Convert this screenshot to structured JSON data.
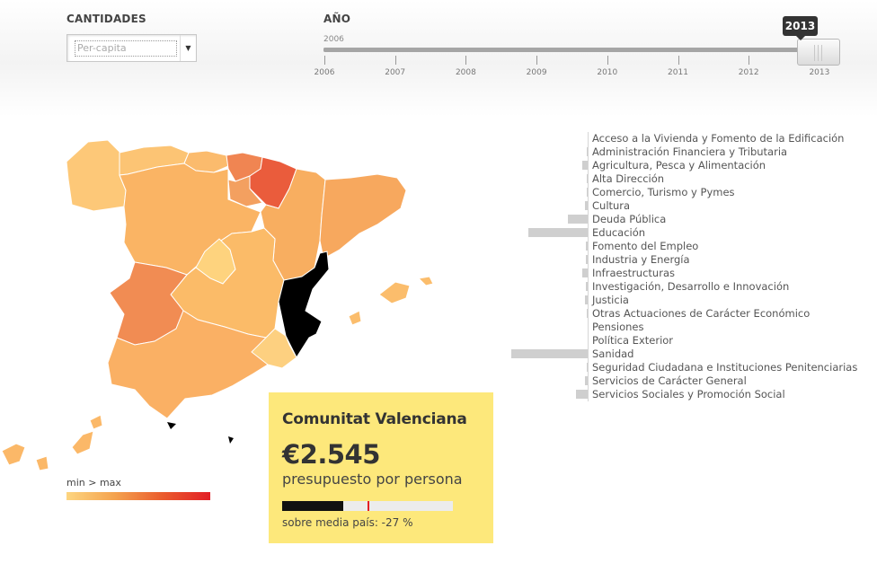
{
  "controls": {
    "cantidades_label": "CANTIDADES",
    "cantidades_value": "Per-capita",
    "anio_label": "AÑO",
    "slider_start_label": "2006",
    "selected_year": "2013",
    "year_ticks": [
      "2006",
      "2007",
      "2008",
      "2009",
      "2010",
      "2011",
      "2012",
      "2013"
    ]
  },
  "legend": {
    "label": "min > max",
    "colors": [
      "#fdd580",
      "#f4a34f",
      "#ea5c2d",
      "#e21f26"
    ]
  },
  "info": {
    "region": "Comunitat Valenciana",
    "amount": "€2.545",
    "unit": "presupuesto por persona",
    "comparison_text": "sobre media país: -27 %",
    "bar_fraction": 0.36,
    "mean_marker_fraction": 0.5
  },
  "categories": [
    {
      "label": "Acceso a la Vivienda y Fomento de la Edificación",
      "value": 0
    },
    {
      "label": "Administración Financiera y Tributaria",
      "value": 0.01
    },
    {
      "label": "Agricultura, Pesca y Alimentación",
      "value": 0.07
    },
    {
      "label": "Alta Dirección",
      "value": 0.01
    },
    {
      "label": "Comercio, Turismo y Pymes",
      "value": 0.01
    },
    {
      "label": "Cultura",
      "value": 0.04
    },
    {
      "label": "Deuda Pública",
      "value": 0.26
    },
    {
      "label": "Educación",
      "value": 0.78
    },
    {
      "label": "Fomento del Empleo",
      "value": 0.02
    },
    {
      "label": "Industria y Energía",
      "value": 0.02
    },
    {
      "label": "Infraestructuras",
      "value": 0.07
    },
    {
      "label": "Investigación, Desarrollo e Innovación",
      "value": 0.02
    },
    {
      "label": "Justicia",
      "value": 0.04
    },
    {
      "label": "Otras Actuaciones de Carácter Económico",
      "value": 0.01
    },
    {
      "label": "Pensiones",
      "value": 0
    },
    {
      "label": "Política Exterior",
      "value": 0
    },
    {
      "label": "Sanidad",
      "value": 1.0
    },
    {
      "label": "Seguridad Ciudadana e Instituciones Penitenciarias",
      "value": 0.01
    },
    {
      "label": "Servicios de Carácter General",
      "value": 0.04
    },
    {
      "label": "Servicios Sociales y Promoción Social",
      "value": 0.15
    }
  ],
  "map": {
    "selected_region": "Comunitat Valenciana",
    "region_colors": {
      "galicia": "#fdc878",
      "asturias": "#fcc474",
      "cantabria": "#fbbb6d",
      "pais-vasco": "#f08552",
      "navarra": "#ea5c3c",
      "la-rioja": "#f3a060",
      "castilla-leon": "#fab464",
      "aragon": "#f8ae60",
      "cataluna": "#f7a85e",
      "madrid": "#fed37e",
      "castilla-la-mancha": "#fbbb68",
      "extremadura": "#f18c53",
      "andalucia": "#fab064",
      "murcia": "#fdd080",
      "comunitat-valenciana": "#000000",
      "baleares": "#fbbd6c",
      "canarias": "#fbb868"
    }
  }
}
